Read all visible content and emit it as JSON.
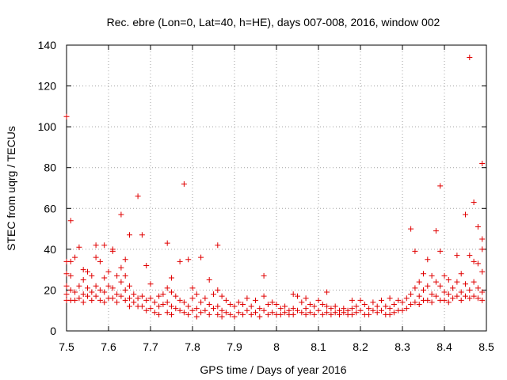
{
  "chart_data": {
    "type": "scatter",
    "title": "Rec. ebre (Lon=0, Lat=40, h=HE), days 007-008, 2016, window 002",
    "xlabel": "GPS time / Days of year 2016",
    "ylabel": "STEC from uqrg / TECUs",
    "xlim": [
      7.5,
      8.5
    ],
    "ylim": [
      0,
      140
    ],
    "xticks": [
      "7.5",
      "7.6",
      "7.7",
      "7.8",
      "7.9",
      "8",
      "8.1",
      "8.2",
      "8.3",
      "8.4",
      "8.5"
    ],
    "yticks": [
      "0",
      "20",
      "40",
      "60",
      "80",
      "100",
      "120",
      "140"
    ],
    "grid": true,
    "marker": "+",
    "color": "#e00000",
    "points": [
      [
        7.5,
        105
      ],
      [
        7.5,
        34
      ],
      [
        7.5,
        28
      ],
      [
        7.5,
        22
      ],
      [
        7.5,
        18
      ],
      [
        7.5,
        15
      ],
      [
        7.51,
        54
      ],
      [
        7.51,
        34
      ],
      [
        7.51,
        27
      ],
      [
        7.51,
        20
      ],
      [
        7.51,
        15
      ],
      [
        7.52,
        36
      ],
      [
        7.52,
        19
      ],
      [
        7.52,
        15
      ],
      [
        7.53,
        41
      ],
      [
        7.53,
        22
      ],
      [
        7.53,
        16
      ],
      [
        7.54,
        30
      ],
      [
        7.54,
        25
      ],
      [
        7.54,
        18
      ],
      [
        7.54,
        14
      ],
      [
        7.55,
        29
      ],
      [
        7.55,
        21
      ],
      [
        7.55,
        17
      ],
      [
        7.56,
        27
      ],
      [
        7.56,
        19
      ],
      [
        7.56,
        15
      ],
      [
        7.57,
        42
      ],
      [
        7.57,
        36
      ],
      [
        7.57,
        22
      ],
      [
        7.57,
        17
      ],
      [
        7.58,
        34
      ],
      [
        7.58,
        20
      ],
      [
        7.58,
        15
      ],
      [
        7.59,
        42
      ],
      [
        7.59,
        26
      ],
      [
        7.59,
        19
      ],
      [
        7.59,
        14
      ],
      [
        7.6,
        29
      ],
      [
        7.6,
        22
      ],
      [
        7.6,
        16
      ],
      [
        7.61,
        40
      ],
      [
        7.61,
        39
      ],
      [
        7.61,
        21
      ],
      [
        7.61,
        16
      ],
      [
        7.62,
        27
      ],
      [
        7.62,
        18
      ],
      [
        7.62,
        14
      ],
      [
        7.63,
        57
      ],
      [
        7.63,
        31
      ],
      [
        7.63,
        24
      ],
      [
        7.63,
        17
      ],
      [
        7.64,
        35
      ],
      [
        7.64,
        27
      ],
      [
        7.64,
        20
      ],
      [
        7.64,
        15
      ],
      [
        7.65,
        47
      ],
      [
        7.65,
        22
      ],
      [
        7.65,
        16
      ],
      [
        7.65,
        12
      ],
      [
        7.66,
        18
      ],
      [
        7.66,
        14
      ],
      [
        7.67,
        66
      ],
      [
        7.67,
        16
      ],
      [
        7.67,
        12
      ],
      [
        7.68,
        47
      ],
      [
        7.68,
        17
      ],
      [
        7.68,
        12
      ],
      [
        7.69,
        32
      ],
      [
        7.69,
        15
      ],
      [
        7.69,
        10
      ],
      [
        7.7,
        23
      ],
      [
        7.7,
        16
      ],
      [
        7.7,
        11
      ],
      [
        7.71,
        14
      ],
      [
        7.71,
        9
      ],
      [
        7.72,
        17
      ],
      [
        7.72,
        12
      ],
      [
        7.72,
        8
      ],
      [
        7.73,
        18
      ],
      [
        7.73,
        13
      ],
      [
        7.74,
        43
      ],
      [
        7.74,
        21
      ],
      [
        7.74,
        14
      ],
      [
        7.74,
        9
      ],
      [
        7.75,
        26
      ],
      [
        7.75,
        19
      ],
      [
        7.75,
        12
      ],
      [
        7.75,
        8
      ],
      [
        7.76,
        17
      ],
      [
        7.76,
        11
      ],
      [
        7.77,
        34
      ],
      [
        7.77,
        15
      ],
      [
        7.77,
        10
      ],
      [
        7.78,
        72
      ],
      [
        7.78,
        14
      ],
      [
        7.78,
        9
      ],
      [
        7.79,
        35
      ],
      [
        7.79,
        12
      ],
      [
        7.79,
        8
      ],
      [
        7.8,
        21
      ],
      [
        7.8,
        16
      ],
      [
        7.8,
        10
      ],
      [
        7.81,
        18
      ],
      [
        7.81,
        11
      ],
      [
        7.81,
        7
      ],
      [
        7.82,
        36
      ],
      [
        7.82,
        14
      ],
      [
        7.82,
        9
      ],
      [
        7.83,
        16
      ],
      [
        7.83,
        10
      ],
      [
        7.84,
        25
      ],
      [
        7.84,
        13
      ],
      [
        7.84,
        8
      ],
      [
        7.85,
        18
      ],
      [
        7.85,
        11
      ],
      [
        7.86,
        42
      ],
      [
        7.86,
        20
      ],
      [
        7.86,
        12
      ],
      [
        7.86,
        8
      ],
      [
        7.87,
        17
      ],
      [
        7.87,
        10
      ],
      [
        7.87,
        7
      ],
      [
        7.88,
        15
      ],
      [
        7.88,
        9
      ],
      [
        7.89,
        13
      ],
      [
        7.89,
        8
      ],
      [
        7.9,
        12
      ],
      [
        7.9,
        7
      ],
      [
        7.91,
        14
      ],
      [
        7.91,
        9
      ],
      [
        7.92,
        13
      ],
      [
        7.92,
        8
      ],
      [
        7.93,
        16
      ],
      [
        7.93,
        10
      ],
      [
        7.94,
        12
      ],
      [
        7.94,
        8
      ],
      [
        7.95,
        15
      ],
      [
        7.95,
        9
      ],
      [
        7.96,
        11
      ],
      [
        7.96,
        7
      ],
      [
        7.97,
        27
      ],
      [
        7.97,
        17
      ],
      [
        7.97,
        10
      ],
      [
        7.98,
        13
      ],
      [
        7.98,
        8
      ],
      [
        7.99,
        14
      ],
      [
        7.99,
        9
      ],
      [
        8.0,
        13
      ],
      [
        8.0,
        8
      ],
      [
        8.01,
        11
      ],
      [
        8.01,
        8
      ],
      [
        8.02,
        12
      ],
      [
        8.02,
        9
      ],
      [
        8.03,
        10
      ],
      [
        8.03,
        8
      ],
      [
        8.04,
        18
      ],
      [
        8.04,
        11
      ],
      [
        8.04,
        8
      ],
      [
        8.05,
        17
      ],
      [
        8.05,
        10
      ],
      [
        8.06,
        14
      ],
      [
        8.06,
        9
      ],
      [
        8.07,
        16
      ],
      [
        8.07,
        11
      ],
      [
        8.07,
        8
      ],
      [
        8.08,
        13
      ],
      [
        8.08,
        9
      ],
      [
        8.09,
        12
      ],
      [
        8.09,
        8
      ],
      [
        8.1,
        15
      ],
      [
        8.1,
        10
      ],
      [
        8.11,
        13
      ],
      [
        8.11,
        8
      ],
      [
        8.12,
        19
      ],
      [
        8.12,
        12
      ],
      [
        8.12,
        9
      ],
      [
        8.13,
        11
      ],
      [
        8.13,
        8
      ],
      [
        8.14,
        12
      ],
      [
        8.14,
        9
      ],
      [
        8.15,
        10
      ],
      [
        8.15,
        8
      ],
      [
        8.16,
        11
      ],
      [
        8.16,
        9
      ],
      [
        8.17,
        10
      ],
      [
        8.17,
        8
      ],
      [
        8.18,
        15
      ],
      [
        8.18,
        11
      ],
      [
        8.18,
        8
      ],
      [
        8.19,
        12
      ],
      [
        8.19,
        9
      ],
      [
        8.2,
        15
      ],
      [
        8.2,
        10
      ],
      [
        8.21,
        13
      ],
      [
        8.21,
        8
      ],
      [
        8.22,
        11
      ],
      [
        8.22,
        8
      ],
      [
        8.23,
        14
      ],
      [
        8.23,
        10
      ],
      [
        8.24,
        12
      ],
      [
        8.24,
        9
      ],
      [
        8.25,
        15
      ],
      [
        8.25,
        10
      ],
      [
        8.26,
        12
      ],
      [
        8.26,
        8
      ],
      [
        8.27,
        16
      ],
      [
        8.27,
        11
      ],
      [
        8.27,
        8
      ],
      [
        8.28,
        13
      ],
      [
        8.28,
        9
      ],
      [
        8.29,
        15
      ],
      [
        8.29,
        10
      ],
      [
        8.3,
        14
      ],
      [
        8.3,
        10
      ],
      [
        8.31,
        16
      ],
      [
        8.31,
        11
      ],
      [
        8.32,
        50
      ],
      [
        8.32,
        18
      ],
      [
        8.32,
        13
      ],
      [
        8.33,
        39
      ],
      [
        8.33,
        21
      ],
      [
        8.33,
        14
      ],
      [
        8.34,
        24
      ],
      [
        8.34,
        17
      ],
      [
        8.34,
        13
      ],
      [
        8.35,
        28
      ],
      [
        8.35,
        20
      ],
      [
        8.35,
        15
      ],
      [
        8.36,
        35
      ],
      [
        8.36,
        22
      ],
      [
        8.36,
        15
      ],
      [
        8.37,
        27
      ],
      [
        8.37,
        18
      ],
      [
        8.37,
        14
      ],
      [
        8.38,
        49
      ],
      [
        8.38,
        24
      ],
      [
        8.38,
        17
      ],
      [
        8.39,
        71
      ],
      [
        8.39,
        39
      ],
      [
        8.39,
        22
      ],
      [
        8.39,
        15
      ],
      [
        8.4,
        27
      ],
      [
        8.4,
        19
      ],
      [
        8.4,
        15
      ],
      [
        8.41,
        25
      ],
      [
        8.41,
        18
      ],
      [
        8.41,
        14
      ],
      [
        8.42,
        21
      ],
      [
        8.42,
        16
      ],
      [
        8.43,
        37
      ],
      [
        8.43,
        24
      ],
      [
        8.43,
        17
      ],
      [
        8.44,
        28
      ],
      [
        8.44,
        19
      ],
      [
        8.44,
        15
      ],
      [
        8.45,
        57
      ],
      [
        8.45,
        23
      ],
      [
        8.45,
        17
      ],
      [
        8.46,
        134
      ],
      [
        8.46,
        37
      ],
      [
        8.46,
        20
      ],
      [
        8.46,
        16
      ],
      [
        8.47,
        63
      ],
      [
        8.47,
        34
      ],
      [
        8.47,
        24
      ],
      [
        8.47,
        17
      ],
      [
        8.48,
        51
      ],
      [
        8.48,
        33
      ],
      [
        8.48,
        21
      ],
      [
        8.48,
        16
      ],
      [
        8.49,
        82
      ],
      [
        8.49,
        45
      ],
      [
        8.49,
        40
      ],
      [
        8.49,
        29
      ],
      [
        8.49,
        19
      ],
      [
        8.49,
        15
      ]
    ]
  }
}
